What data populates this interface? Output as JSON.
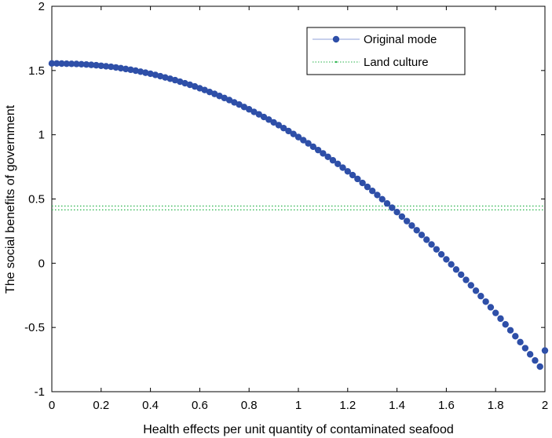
{
  "chart_data": {
    "type": "scatter",
    "xlabel": "Health effects per unit quantity of contaminated seafood",
    "ylabel": "The social benefits of government",
    "xlim": [
      0,
      2
    ],
    "ylim": [
      -1,
      2
    ],
    "x_ticks": [
      "0",
      "0.2",
      "0.4",
      "0.6",
      "0.8",
      "1",
      "1.2",
      "1.4",
      "1.6",
      "1.8",
      "2"
    ],
    "y_ticks": [
      "-1",
      "-0.5",
      "0",
      "0.5",
      "1",
      "1.5",
      "2"
    ],
    "grid": false,
    "legend_position": "top-right",
    "series": [
      {
        "name": "Original mode",
        "style": "markers",
        "color": "#2e4fa8",
        "x_start": 0,
        "x_end": 2,
        "x_step": 0.02,
        "y": [
          1.555,
          1.555,
          1.554,
          1.553,
          1.552,
          1.551,
          1.549,
          1.547,
          1.544,
          1.541,
          1.537,
          1.533,
          1.529,
          1.524,
          1.518,
          1.512,
          1.506,
          1.499,
          1.491,
          1.483,
          1.475,
          1.466,
          1.456,
          1.446,
          1.436,
          1.425,
          1.413,
          1.401,
          1.389,
          1.376,
          1.362,
          1.348,
          1.333,
          1.318,
          1.302,
          1.286,
          1.27,
          1.252,
          1.235,
          1.216,
          1.198,
          1.178,
          1.159,
          1.138,
          1.118,
          1.096,
          1.075,
          1.052,
          1.029,
          1.006,
          0.982,
          0.958,
          0.933,
          0.907,
          0.881,
          0.855,
          0.828,
          0.801,
          0.773,
          0.744,
          0.715,
          0.686,
          0.656,
          0.625,
          0.594,
          0.563,
          0.531,
          0.498,
          0.465,
          0.432,
          0.398,
          0.363,
          0.328,
          0.293,
          0.257,
          0.22,
          0.183,
          0.146,
          0.108,
          0.069,
          0.03,
          -0.009,
          -0.049,
          -0.089,
          -0.13,
          -0.172,
          -0.214,
          -0.256,
          -0.299,
          -0.343,
          -0.387,
          -0.431,
          -0.476,
          -0.522,
          -0.568,
          -0.614,
          -0.661,
          -0.709,
          -0.757,
          -0.805,
          -0.68
        ]
      },
      {
        "name": "Land culture",
        "style": "dotted-lines",
        "color": "#27b34a",
        "y_levels": [
          0.445,
          0.415
        ]
      }
    ]
  }
}
